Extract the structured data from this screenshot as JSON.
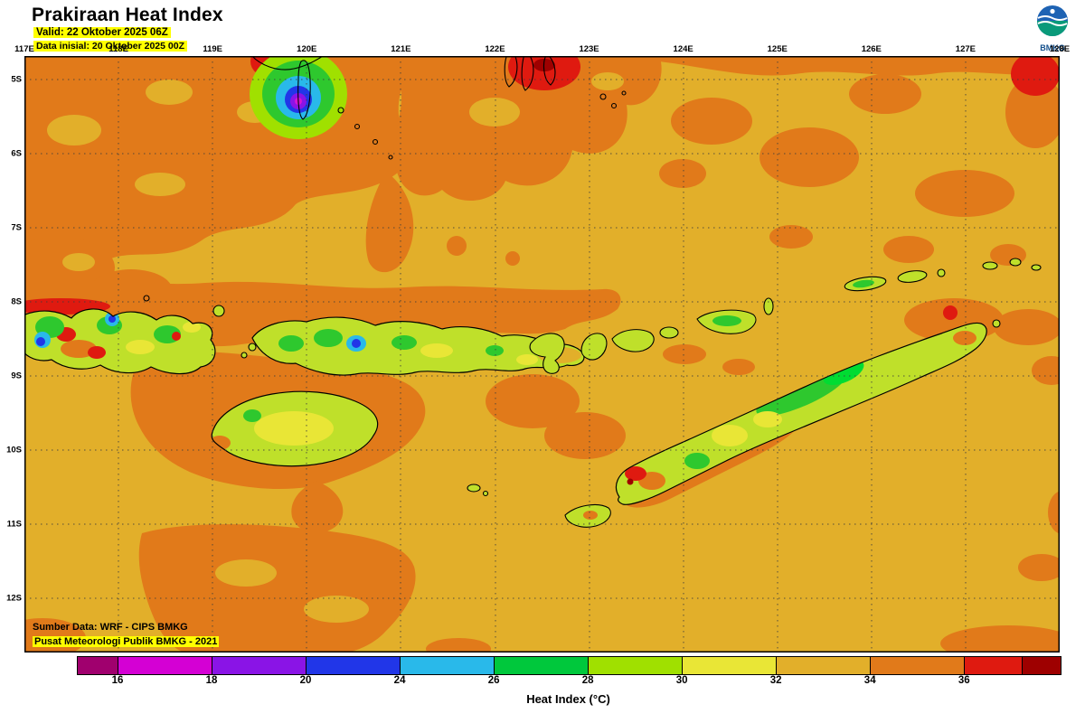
{
  "header": {
    "title": "Prakiraan Heat Index",
    "valid_line": "Valid: 22 Oktober 2025 06Z",
    "init_line": "Data inisial: 20 Oktober 2025 00Z",
    "logo_text": "BMKG"
  },
  "map": {
    "lon_labels": [
      "117E",
      "118E",
      "119E",
      "120E",
      "121E",
      "122E",
      "123E",
      "124E",
      "125E",
      "126E",
      "127E",
      "128E"
    ],
    "lat_labels": [
      "5S",
      "6S",
      "7S",
      "8S",
      "9S",
      "10S",
      "11S",
      "12S"
    ],
    "source_line1": "Sumber Data: WRF - CIPS BMKG",
    "source_line2": "Pusat Meteorologi Publik BMKG - 2021"
  },
  "palette": {
    "background_gold": "#e2af2a",
    "orange": "#e17a1a",
    "red": "#df1a10",
    "dark_red": "#9e0000",
    "yellow": "#e9e636",
    "yellow_green": "#bfe02a",
    "green": "#2ec82e",
    "bright_green": "#00dc32",
    "cyan": "#29b9ea",
    "blue": "#2136e8",
    "purple": "#8a14e6",
    "magenta": "#d414d4",
    "highlight": "#ffff00"
  },
  "legend": {
    "title": "Heat Index (°C)",
    "segments": [
      {
        "color": "#a0006e",
        "width_pct": 4.14,
        "label": "16"
      },
      {
        "color": "#d400d4",
        "width_pct": 9.57,
        "label": "18"
      },
      {
        "color": "#8a14e6",
        "width_pct": 9.57,
        "label": "20"
      },
      {
        "color": "#2136e8",
        "width_pct": 9.57,
        "label": "24"
      },
      {
        "color": "#29b9ea",
        "width_pct": 9.57,
        "label": "26"
      },
      {
        "color": "#00c83c",
        "width_pct": 9.57,
        "label": "28"
      },
      {
        "color": "#a0e000",
        "width_pct": 9.57,
        "label": "30"
      },
      {
        "color": "#e9e636",
        "width_pct": 9.57,
        "label": "32"
      },
      {
        "color": "#e2af2a",
        "width_pct": 9.57,
        "label": "34"
      },
      {
        "color": "#e17a1a",
        "width_pct": 9.57,
        "label": "36"
      },
      {
        "color": "#df1a10",
        "width_pct": 5.89,
        "label": ""
      },
      {
        "color": "#9e0000",
        "width_pct": 3.86,
        "label": ""
      }
    ]
  },
  "chart_data": {
    "type": "heatmap",
    "title": "Prakiraan Heat Index",
    "valid_time": "22 Oktober 2025 06Z",
    "initial_time": "20 Oktober 2025 00Z",
    "unit": "°C",
    "x_ticks": [
      "117E",
      "118E",
      "119E",
      "120E",
      "121E",
      "122E",
      "123E",
      "124E",
      "125E",
      "126E",
      "127E",
      "128E"
    ],
    "y_ticks": [
      "5S",
      "6S",
      "7S",
      "8S",
      "9S",
      "10S",
      "11S",
      "12S"
    ],
    "colorbar_boundaries": [
      16,
      18,
      20,
      24,
      26,
      28,
      30,
      32,
      34,
      36
    ],
    "colorbar_colors": [
      "#a0006e",
      "#d400d4",
      "#8a14e6",
      "#2136e8",
      "#29b9ea",
      "#00c83c",
      "#a0e000",
      "#e9e636",
      "#e2af2a",
      "#e17a1a",
      "#df1a10",
      "#9e0000"
    ],
    "legend_title": "Heat Index (°C)"
  }
}
